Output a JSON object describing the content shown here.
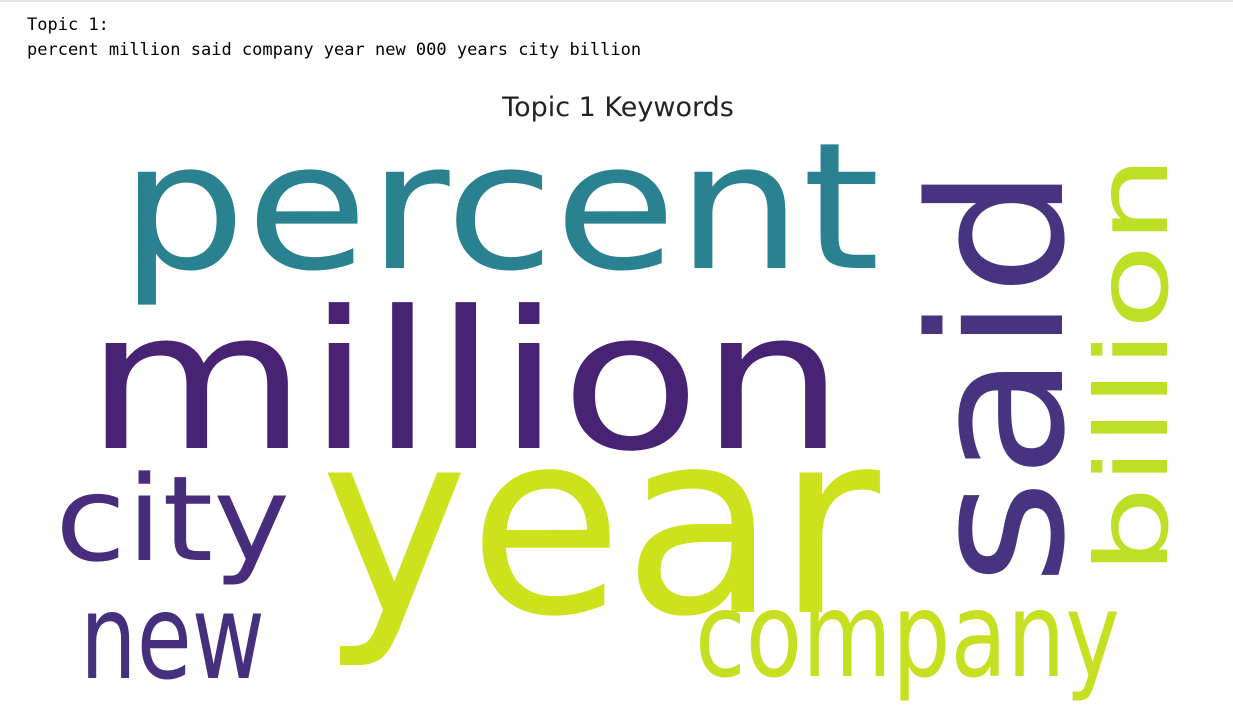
{
  "output": {
    "topic_header": "Topic 1:",
    "topic_terms": "percent million said company year new 000 years city billion"
  },
  "figure": {
    "title": "Topic 1 Keywords",
    "words": [
      {
        "text": "percent",
        "color": "#2a8190"
      },
      {
        "text": "million",
        "color": "#482374"
      },
      {
        "text": "year",
        "color": "#cde11d"
      },
      {
        "text": "said",
        "color": "#463480"
      },
      {
        "text": "billion",
        "color": "#bddf26"
      },
      {
        "text": "city",
        "color": "#472d7b"
      },
      {
        "text": "new",
        "color": "#46307e"
      },
      {
        "text": "company",
        "color": "#c5e021"
      }
    ]
  }
}
